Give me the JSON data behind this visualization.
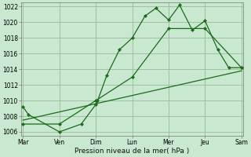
{
  "background_color": "#c8e8d0",
  "grid_color": "#99bb99",
  "line_color": "#1a6b1a",
  "marker_color": "#1a6b1a",
  "x_labels": [
    "Mar",
    "Ven",
    "Dim",
    "Lun",
    "Mer",
    "Jeu",
    "Sam"
  ],
  "x_ticks": [
    0,
    1,
    2,
    3,
    4,
    5,
    6
  ],
  "xlabel": "Pression niveau de la mer( hPa )",
  "ylim": [
    1005.5,
    1022.5
  ],
  "yticks": [
    1006,
    1008,
    1010,
    1012,
    1014,
    1016,
    1018,
    1020,
    1022
  ],
  "line1_x": [
    0.0,
    0.15,
    1.0,
    1.6,
    2.0,
    2.05,
    2.3,
    2.65,
    3.0,
    3.35,
    3.65,
    4.0,
    4.3,
    4.65,
    5.0,
    5.35,
    5.65,
    6.0
  ],
  "line1_y": [
    1009.2,
    1008.2,
    1006.0,
    1007.0,
    1009.5,
    1010.0,
    1013.2,
    1016.5,
    1018.0,
    1020.8,
    1021.8,
    1020.3,
    1022.2,
    1019.0,
    1020.2,
    1016.5,
    1014.2,
    1014.2
  ],
  "line2_x": [
    0.0,
    1.0,
    2.0,
    3.0,
    4.0,
    5.0,
    6.0
  ],
  "line2_y": [
    1007.0,
    1007.0,
    1010.0,
    1013.0,
    1019.2,
    1019.2,
    1014.2
  ],
  "line3_x": [
    0.0,
    6.0
  ],
  "line3_y": [
    1007.5,
    1013.8
  ]
}
